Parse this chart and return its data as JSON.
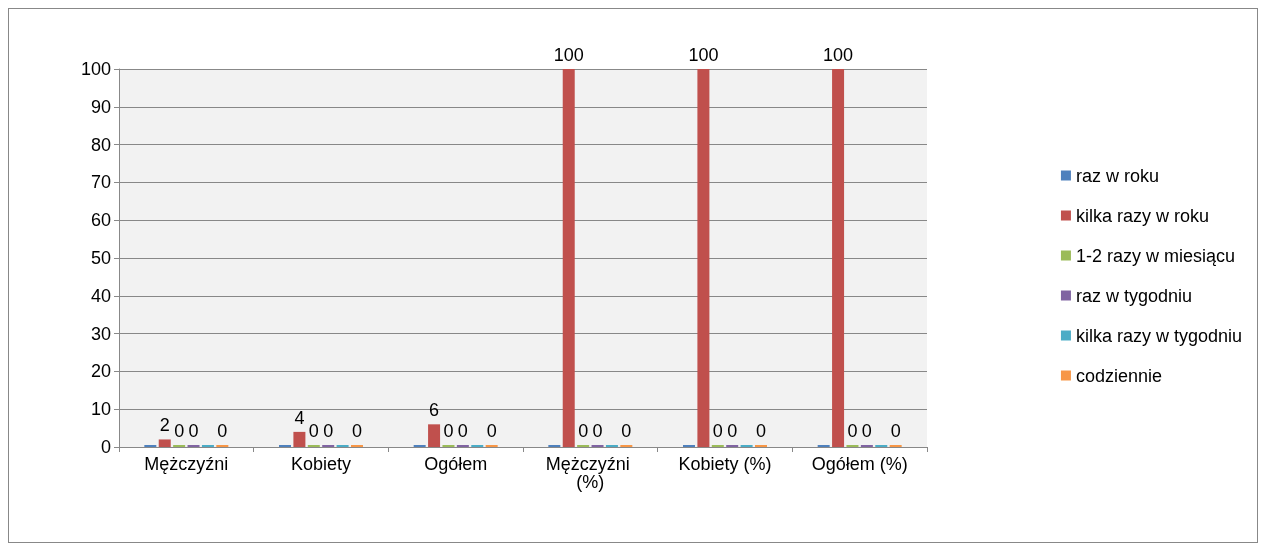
{
  "chart_data": {
    "type": "bar",
    "categories": [
      "Mężczyźni",
      "Kobiety",
      "Ogółem",
      "Mężczyźni (%)",
      "Kobiety (%)",
      "Ogółem (%)"
    ],
    "series": [
      {
        "name": "raz w roku",
        "color": "#4f81bd",
        "values": [
          0,
          0,
          0,
          0,
          0,
          0
        ],
        "value_labels": [
          null,
          null,
          null,
          null,
          null,
          null
        ]
      },
      {
        "name": "kilka razy w roku",
        "color": "#c0504d",
        "values": [
          2,
          4,
          6,
          100,
          100,
          100
        ],
        "value_labels": [
          "2",
          "4",
          "6",
          "100",
          "100",
          "100"
        ]
      },
      {
        "name": "1-2 razy w miesiącu",
        "color": "#9bbb59",
        "values": [
          0,
          0,
          0,
          0,
          0,
          0
        ],
        "value_labels": [
          "0",
          "0",
          "0",
          "0",
          "0",
          "0"
        ]
      },
      {
        "name": "raz w tygodniu",
        "color": "#8064a2",
        "values": [
          0,
          0,
          0,
          0,
          0,
          0
        ],
        "value_labels": [
          "0",
          "0",
          "0",
          "0",
          "0",
          "0"
        ]
      },
      {
        "name": "kilka razy w tygodniu",
        "color": "#4bacc6",
        "values": [
          0,
          0,
          0,
          0,
          0,
          0
        ],
        "value_labels": [
          null,
          null,
          null,
          null,
          null,
          null
        ]
      },
      {
        "name": "codziennie",
        "color": "#f79646",
        "values": [
          0,
          0,
          0,
          0,
          0,
          0
        ],
        "value_labels": [
          "0",
          "0",
          "0",
          "0",
          "0",
          "0"
        ]
      }
    ],
    "ylim": [
      0,
      100
    ],
    "yticks": [
      0,
      10,
      20,
      30,
      40,
      50,
      60,
      70,
      80,
      90,
      100
    ],
    "grid": "y",
    "legend": "right"
  }
}
